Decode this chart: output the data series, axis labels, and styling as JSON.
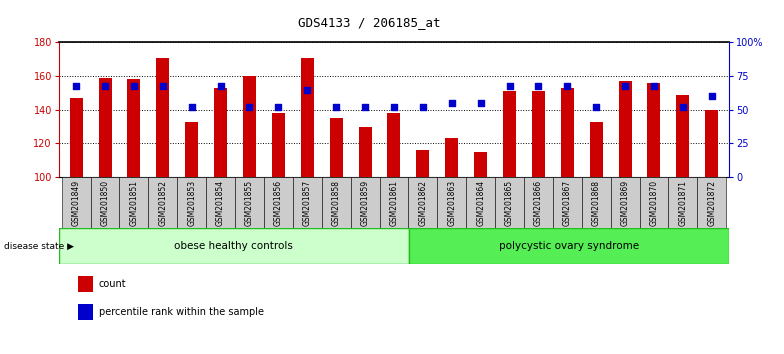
{
  "title": "GDS4133 / 206185_at",
  "samples": [
    "GSM201849",
    "GSM201850",
    "GSM201851",
    "GSM201852",
    "GSM201853",
    "GSM201854",
    "GSM201855",
    "GSM201856",
    "GSM201857",
    "GSM201858",
    "GSM201859",
    "GSM201861",
    "GSM201862",
    "GSM201863",
    "GSM201864",
    "GSM201865",
    "GSM201866",
    "GSM201867",
    "GSM201868",
    "GSM201869",
    "GSM201870",
    "GSM201871",
    "GSM201872"
  ],
  "counts": [
    147,
    159,
    158,
    171,
    133,
    153,
    160,
    138,
    171,
    135,
    130,
    138,
    116,
    123,
    115,
    151,
    151,
    153,
    133,
    157,
    156,
    149,
    140
  ],
  "percentiles": [
    68,
    68,
    68,
    68,
    52,
    68,
    52,
    52,
    65,
    52,
    52,
    52,
    52,
    55,
    55,
    68,
    68,
    68,
    52,
    68,
    68,
    52,
    60
  ],
  "group1_label": "obese healthy controls",
  "group1_count": 12,
  "group2_label": "polycystic ovary syndrome",
  "group2_count": 11,
  "disease_state_label": "disease state",
  "ylim_left": [
    100,
    180
  ],
  "ylim_right": [
    0,
    100
  ],
  "yticks_left": [
    100,
    120,
    140,
    160,
    180
  ],
  "yticks_right": [
    0,
    25,
    50,
    75,
    100
  ],
  "ytick_labels_right": [
    "0",
    "25",
    "50",
    "75",
    "100%"
  ],
  "bar_color": "#cc0000",
  "percentile_color": "#0000cc",
  "bg_color": "#ffffff",
  "group1_bg": "#ccffcc",
  "group2_bg": "#55ee55",
  "sample_bg": "#cccccc",
  "bar_width": 0.45,
  "legend_count_label": "count",
  "legend_pct_label": "percentile rank within the sample"
}
